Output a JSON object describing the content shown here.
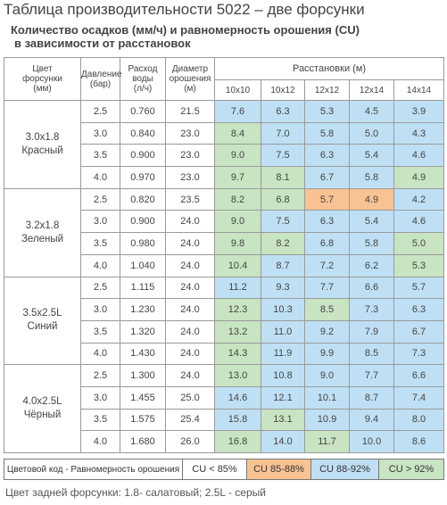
{
  "header": {
    "title": "Таблица производительности 5022 – две форсунки",
    "subtitle": [
      "Количество осадков (мм/ч) и равномерность орошения (CU)",
      "в зависимости от расстановок"
    ]
  },
  "table": {
    "columns": [
      [
        "Цвет",
        "форсунки",
        "(мм)"
      ],
      [
        "Давление",
        "(бар)"
      ],
      [
        "Расход",
        "воды",
        "(л/ч)"
      ],
      [
        "Диаметр",
        "орошения",
        "(м)"
      ]
    ],
    "spacing_label": "Расстановки (м)",
    "spacings": [
      "10x10",
      "10x12",
      "12x12",
      "12x14",
      "14x14"
    ],
    "groups": [
      {
        "label": [
          "3.0x1.8",
          "Красный"
        ],
        "rows": [
          {
            "pressure": "2.5",
            "flow": "0.760",
            "diameter": "21.5",
            "cells": [
              {
                "text": "7.6",
                "color": "#bfe0f4"
              },
              {
                "text": "6.3",
                "color": "#bfe0f4"
              },
              {
                "text": "5.3",
                "color": "#bfe0f4"
              },
              {
                "text": "4.5",
                "color": "#bfe0f4"
              },
              {
                "text": "3.9",
                "color": "#bfe0f4"
              }
            ]
          },
          {
            "pressure": "3.0",
            "flow": "0.840",
            "diameter": "23.0",
            "cells": [
              {
                "text": "8.4",
                "color": "#c8e4c2"
              },
              {
                "text": "7.0",
                "color": "#bfe0f4"
              },
              {
                "text": "5.8",
                "color": "#bfe0f4"
              },
              {
                "text": "5.0",
                "color": "#bfe0f4"
              },
              {
                "text": "4.3",
                "color": "#bfe0f4"
              }
            ]
          },
          {
            "pressure": "3.5",
            "flow": "0.900",
            "diameter": "23.0",
            "cells": [
              {
                "text": "9.0",
                "color": "#c8e4c2"
              },
              {
                "text": "7.5",
                "color": "#bfe0f4"
              },
              {
                "text": "6.3",
                "color": "#bfe0f4"
              },
              {
                "text": "5.4",
                "color": "#bfe0f4"
              },
              {
                "text": "4.6",
                "color": "#bfe0f4"
              }
            ]
          },
          {
            "pressure": "4.0",
            "flow": "0.970",
            "diameter": "23.0",
            "cells": [
              {
                "text": "9.7",
                "color": "#c8e4c2"
              },
              {
                "text": "8.1",
                "color": "#c8e4c2"
              },
              {
                "text": "6.7",
                "color": "#bfe0f4"
              },
              {
                "text": "5.8",
                "color": "#bfe0f4"
              },
              {
                "text": "4.9",
                "color": "#c8e4c2"
              }
            ]
          }
        ]
      },
      {
        "label": [
          "3.2x1.8",
          "Зеленый"
        ],
        "rows": [
          {
            "pressure": "2.5",
            "flow": "0.820",
            "diameter": "23.5",
            "cells": [
              {
                "text": "8.2",
                "color": "#c8e4c2"
              },
              {
                "text": "6.8",
                "color": "#c8e4c2"
              },
              {
                "text": "5.7",
                "color": "#f8c292"
              },
              {
                "text": "4.9",
                "color": "#f8c292"
              },
              {
                "text": "4.2",
                "color": "#bfe0f4"
              }
            ]
          },
          {
            "pressure": "3.0",
            "flow": "0.900",
            "diameter": "24.0",
            "cells": [
              {
                "text": "9.0",
                "color": "#c8e4c2"
              },
              {
                "text": "7.5",
                "color": "#bfe0f4"
              },
              {
                "text": "6.3",
                "color": "#bfe0f4"
              },
              {
                "text": "5.4",
                "color": "#bfe0f4"
              },
              {
                "text": "4.6",
                "color": "#bfe0f4"
              }
            ]
          },
          {
            "pressure": "3.5",
            "flow": "0.980",
            "diameter": "24.0",
            "cells": [
              {
                "text": "9.8",
                "color": "#c8e4c2"
              },
              {
                "text": "8.2",
                "color": "#c8e4c2"
              },
              {
                "text": "6.8",
                "color": "#bfe0f4"
              },
              {
                "text": "5.8",
                "color": "#bfe0f4"
              },
              {
                "text": "5.0",
                "color": "#c8e4c2"
              }
            ]
          },
          {
            "pressure": "4.0",
            "flow": "1.040",
            "diameter": "24.0",
            "cells": [
              {
                "text": "10.4",
                "color": "#c8e4c2"
              },
              {
                "text": "8.7",
                "color": "#bfe0f4"
              },
              {
                "text": "7.2",
                "color": "#bfe0f4"
              },
              {
                "text": "6.2",
                "color": "#bfe0f4"
              },
              {
                "text": "5.3",
                "color": "#c8e4c2"
              }
            ]
          }
        ]
      },
      {
        "label": [
          "3.5x2.5L",
          "Синий"
        ],
        "rows": [
          {
            "pressure": "2.5",
            "flow": "1.115",
            "diameter": "24.0",
            "cells": [
              {
                "text": "11.2",
                "color": "#bfe0f4"
              },
              {
                "text": "9.3",
                "color": "#bfe0f4"
              },
              {
                "text": "7.7",
                "color": "#bfe0f4"
              },
              {
                "text": "6.6",
                "color": "#bfe0f4"
              },
              {
                "text": "5.7",
                "color": "#bfe0f4"
              }
            ]
          },
          {
            "pressure": "3.0",
            "flow": "1.230",
            "diameter": "24.0",
            "cells": [
              {
                "text": "12.3",
                "color": "#c8e4c2"
              },
              {
                "text": "10.3",
                "color": "#bfe0f4"
              },
              {
                "text": "8.5",
                "color": "#c8e4c2"
              },
              {
                "text": "7.3",
                "color": "#bfe0f4"
              },
              {
                "text": "6.3",
                "color": "#bfe0f4"
              }
            ]
          },
          {
            "pressure": "3.5",
            "flow": "1.320",
            "diameter": "24.0",
            "cells": [
              {
                "text": "13.2",
                "color": "#c8e4c2"
              },
              {
                "text": "11.0",
                "color": "#bfe0f4"
              },
              {
                "text": "9.2",
                "color": "#bfe0f4"
              },
              {
                "text": "7.9",
                "color": "#bfe0f4"
              },
              {
                "text": "6.7",
                "color": "#bfe0f4"
              }
            ]
          },
          {
            "pressure": "4.0",
            "flow": "1.430",
            "diameter": "24.0",
            "cells": [
              {
                "text": "14.3",
                "color": "#c8e4c2"
              },
              {
                "text": "11.9",
                "color": "#bfe0f4"
              },
              {
                "text": "9.9",
                "color": "#bfe0f4"
              },
              {
                "text": "8.5",
                "color": "#bfe0f4"
              },
              {
                "text": "7.3",
                "color": "#bfe0f4"
              }
            ]
          }
        ]
      },
      {
        "label": [
          "4.0x2.5L",
          "Чёрный"
        ],
        "rows": [
          {
            "pressure": "2.5",
            "flow": "1.300",
            "diameter": "24.0",
            "cells": [
              {
                "text": "13.0",
                "color": "#c8e4c2"
              },
              {
                "text": "10.8",
                "color": "#bfe0f4"
              },
              {
                "text": "9.0",
                "color": "#bfe0f4"
              },
              {
                "text": "7.7",
                "color": "#bfe0f4"
              },
              {
                "text": "6.6",
                "color": "#bfe0f4"
              }
            ]
          },
          {
            "pressure": "3.0",
            "flow": "1.455",
            "diameter": "25.0",
            "cells": [
              {
                "text": "14.6",
                "color": "#bfe0f4"
              },
              {
                "text": "12.1",
                "color": "#bfe0f4"
              },
              {
                "text": "10.1",
                "color": "#bfe0f4"
              },
              {
                "text": "8.7",
                "color": "#bfe0f4"
              },
              {
                "text": "7.4",
                "color": "#bfe0f4"
              }
            ]
          },
          {
            "pressure": "3.5",
            "flow": "1.575",
            "diameter": "25.4",
            "cells": [
              {
                "text": "15.8",
                "color": "#bfe0f4"
              },
              {
                "text": "13.1",
                "color": "#c8e4c2"
              },
              {
                "text": "10.9",
                "color": "#bfe0f4"
              },
              {
                "text": "9.4",
                "color": "#bfe0f4"
              },
              {
                "text": "8.0",
                "color": "#bfe0f4"
              }
            ]
          },
          {
            "pressure": "4.0",
            "flow": "1.680",
            "diameter": "26.0",
            "cells": [
              {
                "text": "16.8",
                "color": "#c8e4c2"
              },
              {
                "text": "14.0",
                "color": "#bfe0f4"
              },
              {
                "text": "11.7",
                "color": "#c8e4c2"
              },
              {
                "text": "10.0",
                "color": "#bfe0f4"
              },
              {
                "text": "8.6",
                "color": "#bfe0f4"
              }
            ]
          }
        ]
      }
    ]
  },
  "legend": {
    "title": "Цветовой код - Равномерность орошения",
    "items": [
      {
        "label": "CU < 85%",
        "color": "#ffffff"
      },
      {
        "label": "CU 85-88%",
        "color": "#f8c292"
      },
      {
        "label": "CU 88-92%",
        "color": "#bfe0f4"
      },
      {
        "label": "CU > 92%",
        "color": "#c8e4c2"
      }
    ]
  },
  "footer": "Цвет задней форсунки: 1.8- салатовый; 2.5L - серый"
}
